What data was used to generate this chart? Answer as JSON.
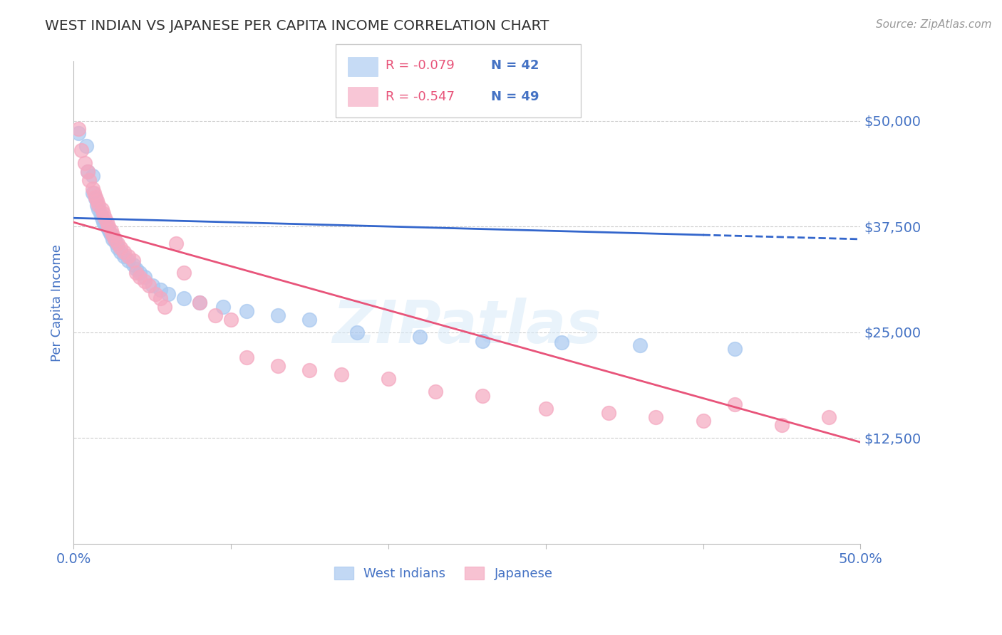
{
  "title": "WEST INDIAN VS JAPANESE PER CAPITA INCOME CORRELATION CHART",
  "source": "Source: ZipAtlas.com",
  "ylabel": "Per Capita Income",
  "xlim": [
    0.0,
    0.5
  ],
  "ylim": [
    0,
    57000
  ],
  "yticks": [
    12500,
    25000,
    37500,
    50000
  ],
  "ytick_labels": [
    "$12,500",
    "$25,000",
    "$37,500",
    "$50,000"
  ],
  "xticks": [
    0.0,
    0.1,
    0.2,
    0.3,
    0.4,
    0.5
  ],
  "xtick_labels": [
    "0.0%",
    "",
    "",
    "",
    "",
    "50.0%"
  ],
  "legend_r_blue": "R = -0.079",
  "legend_n_blue": "N = 42",
  "legend_r_pink": "R = -0.547",
  "legend_n_pink": "N = 49",
  "legend_label_blue": "West Indians",
  "legend_label_pink": "Japanese",
  "blue_color": "#A8C8F0",
  "pink_color": "#F5A8C0",
  "trendline_blue_color": "#3366CC",
  "trendline_pink_color": "#E8547A",
  "background_color": "#FFFFFF",
  "watermark": "ZIPatlas",
  "title_color": "#333333",
  "tick_label_color": "#4472C4",
  "blue_intercept": 38500,
  "blue_slope": -5000,
  "pink_intercept": 38000,
  "pink_slope": -52000,
  "west_indian_x": [
    0.003,
    0.008,
    0.009,
    0.012,
    0.012,
    0.014,
    0.015,
    0.016,
    0.017,
    0.018,
    0.019,
    0.02,
    0.021,
    0.022,
    0.023,
    0.024,
    0.025,
    0.026,
    0.027,
    0.028,
    0.03,
    0.032,
    0.035,
    0.038,
    0.04,
    0.042,
    0.045,
    0.05,
    0.055,
    0.06,
    0.07,
    0.08,
    0.095,
    0.11,
    0.13,
    0.15,
    0.18,
    0.22,
    0.26,
    0.31,
    0.36,
    0.42
  ],
  "west_indian_y": [
    48500,
    47000,
    44000,
    43500,
    41500,
    40800,
    40000,
    39500,
    39000,
    38500,
    38000,
    37800,
    37500,
    37200,
    36800,
    36500,
    36000,
    35800,
    35500,
    35000,
    34500,
    34000,
    33500,
    33000,
    32500,
    32000,
    31500,
    30500,
    30000,
    29500,
    29000,
    28500,
    28000,
    27500,
    27000,
    26500,
    25000,
    24500,
    24000,
    23800,
    23500,
    23000
  ],
  "japanese_x": [
    0.003,
    0.005,
    0.007,
    0.009,
    0.01,
    0.012,
    0.013,
    0.014,
    0.015,
    0.016,
    0.018,
    0.019,
    0.02,
    0.021,
    0.022,
    0.024,
    0.025,
    0.026,
    0.028,
    0.03,
    0.032,
    0.035,
    0.038,
    0.04,
    0.042,
    0.045,
    0.048,
    0.052,
    0.055,
    0.058,
    0.065,
    0.07,
    0.08,
    0.09,
    0.1,
    0.11,
    0.13,
    0.15,
    0.17,
    0.2,
    0.23,
    0.26,
    0.3,
    0.34,
    0.37,
    0.4,
    0.42,
    0.45,
    0.48
  ],
  "japanese_y": [
    49000,
    46500,
    45000,
    44000,
    43000,
    42000,
    41500,
    41000,
    40500,
    40000,
    39500,
    39000,
    38500,
    38000,
    37500,
    37000,
    36500,
    36000,
    35500,
    35000,
    34500,
    34000,
    33500,
    32000,
    31500,
    31000,
    30500,
    29500,
    29000,
    28000,
    35500,
    32000,
    28500,
    27000,
    26500,
    22000,
    21000,
    20500,
    20000,
    19500,
    18000,
    17500,
    16000,
    15500,
    15000,
    14500,
    16500,
    14000,
    15000
  ]
}
